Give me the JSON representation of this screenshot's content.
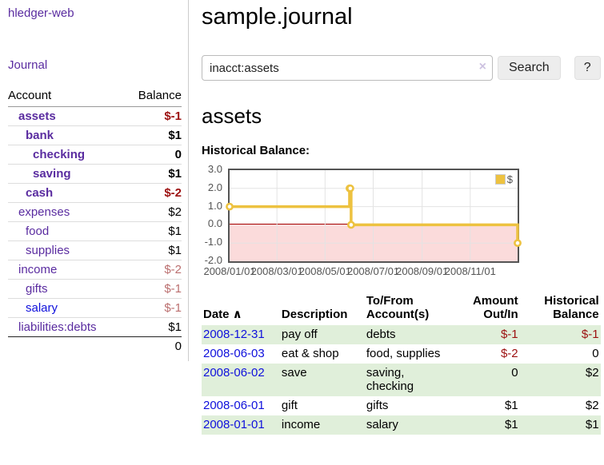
{
  "app": {
    "title": "hledger-web",
    "nav_journal": "Journal"
  },
  "page": {
    "title": "sample.journal"
  },
  "search": {
    "value": "inacct:assets",
    "clear_icon": "×",
    "button_label": "Search",
    "help_label": "?"
  },
  "account_view": {
    "heading": "assets",
    "chart_title": "Historical Balance:"
  },
  "sidebar_accounts": {
    "col_account": "Account",
    "col_balance": "Balance",
    "rows": [
      {
        "name": "assets",
        "depth": 1,
        "balance": "$-1",
        "bold": true,
        "balance_tone": "neg",
        "link_tone": "plink"
      },
      {
        "name": "bank",
        "depth": 2,
        "balance": "$1",
        "bold": true,
        "balance_tone": "",
        "link_tone": "plink"
      },
      {
        "name": "checking",
        "depth": 3,
        "balance": "0",
        "bold": true,
        "balance_tone": "",
        "link_tone": "plink"
      },
      {
        "name": "saving",
        "depth": 3,
        "balance": "$1",
        "bold": true,
        "balance_tone": "",
        "link_tone": "plink"
      },
      {
        "name": "cash",
        "depth": 2,
        "balance": "$-2",
        "bold": true,
        "balance_tone": "neg",
        "link_tone": "plink"
      },
      {
        "name": "expenses",
        "depth": 1,
        "balance": "$2",
        "bold": false,
        "balance_tone": "",
        "link_tone": "plink"
      },
      {
        "name": "food",
        "depth": 2,
        "balance": "$1",
        "bold": false,
        "balance_tone": "",
        "link_tone": "plink"
      },
      {
        "name": "supplies",
        "depth": 2,
        "balance": "$1",
        "bold": false,
        "balance_tone": "",
        "link_tone": "plink"
      },
      {
        "name": "income",
        "depth": 1,
        "balance": "$-2",
        "bold": false,
        "balance_tone": "negmuted",
        "link_tone": "plink"
      },
      {
        "name": "gifts",
        "depth": 2,
        "balance": "$-1",
        "bold": false,
        "balance_tone": "negmuted",
        "link_tone": "plink"
      },
      {
        "name": "salary",
        "depth": 2,
        "balance": "$-1",
        "bold": false,
        "balance_tone": "negmuted",
        "link_tone": "blink"
      },
      {
        "name": "liabilities:debts",
        "depth": 1,
        "balance": "$1",
        "bold": false,
        "balance_tone": "",
        "link_tone": "plink"
      }
    ],
    "total": "0"
  },
  "chart_data": {
    "type": "line",
    "title": "Historical Balance",
    "legend": "$",
    "series_color": "#edc240",
    "x_range_days": 365,
    "ylim": [
      -2,
      3
    ],
    "y_ticks": [
      3.0,
      2.0,
      1.0,
      0.0,
      -1.0,
      -2.0
    ],
    "x_ticks": [
      {
        "label": "2008/01/01",
        "day": 0
      },
      {
        "label": "2008/03/01",
        "day": 60
      },
      {
        "label": "2008/05/01",
        "day": 121
      },
      {
        "label": "2008/07/01",
        "day": 182
      },
      {
        "label": "2008/09/01",
        "day": 244
      },
      {
        "label": "2008/11/01",
        "day": 305
      }
    ],
    "grid_y_values": [
      2.0,
      1.0,
      -1.0
    ],
    "points": [
      {
        "date": "2008-01-01",
        "day": 0,
        "value": 1
      },
      {
        "date": "2008-06-01",
        "day": 152,
        "value": 2
      },
      {
        "date": "2008-06-02",
        "day": 153,
        "value": 2
      },
      {
        "date": "2008-06-03",
        "day": 154,
        "value": 0
      },
      {
        "date": "2008-12-31",
        "day": 365,
        "value": -1
      }
    ]
  },
  "register": {
    "headers": [
      {
        "label": "Date",
        "sort": "∧",
        "align": "left"
      },
      {
        "label": "Description",
        "align": "left"
      },
      {
        "label": "To/From\nAccount(s)",
        "align": "left"
      },
      {
        "label": "Amount\nOut/In",
        "align": "right"
      },
      {
        "label": "Historical\nBalance",
        "align": "right"
      }
    ],
    "rows": [
      {
        "date": "2008-12-31",
        "description": "pay off",
        "accounts": "debts",
        "amount": "$-1",
        "balance": "$-1"
      },
      {
        "date": "2008-06-03",
        "description": "eat & shop",
        "accounts": "food, supplies",
        "amount": "$-2",
        "balance": "0"
      },
      {
        "date": "2008-06-02",
        "description": "save",
        "accounts": "saving, checking",
        "amount": "0",
        "balance": "$2"
      },
      {
        "date": "2008-06-01",
        "description": "gift",
        "accounts": "gifts",
        "amount": "$1",
        "balance": "$2"
      },
      {
        "date": "2008-01-01",
        "description": "income",
        "accounts": "salary",
        "amount": "$1",
        "balance": "$1"
      }
    ]
  }
}
